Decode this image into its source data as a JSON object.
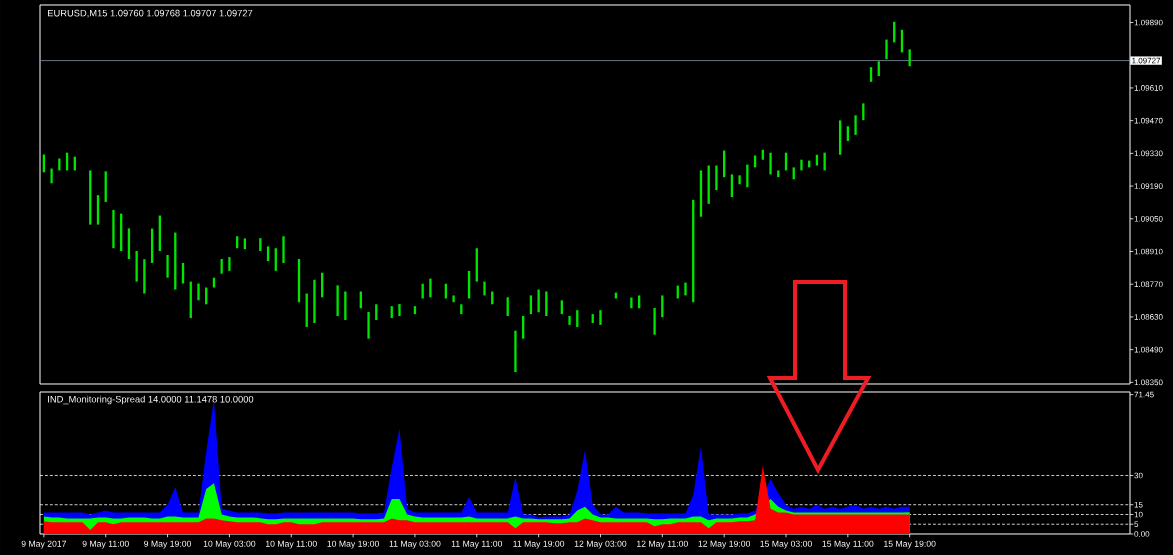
{
  "chart_data": [
    {
      "type": "bar",
      "title": "EURUSD,M15  1.09760 1.09768 1.09707 1.09727",
      "color": "#00e600",
      "categories": [
        null,
        null,
        null,
        null,
        null,
        null,
        null,
        null,
        null,
        null,
        null,
        null,
        null,
        null,
        null,
        null,
        null,
        null,
        null,
        null,
        null,
        null,
        null,
        null,
        null,
        null,
        null,
        null,
        null,
        null,
        null,
        null,
        null,
        null,
        null,
        null,
        null,
        null,
        null,
        null,
        null,
        null,
        null,
        null,
        null,
        null,
        null,
        null,
        null,
        null,
        null,
        null,
        null,
        null,
        null,
        null,
        null,
        null,
        null,
        null,
        null,
        null,
        null,
        null,
        null,
        null,
        null,
        null,
        null,
        null,
        null,
        null,
        null,
        null,
        null,
        null,
        null,
        null,
        null,
        null,
        null,
        null,
        null,
        null,
        null,
        null,
        null,
        null,
        null,
        null,
        null,
        null,
        null,
        null,
        null,
        null,
        null,
        null,
        null,
        null,
        null,
        null,
        null,
        null,
        null,
        null,
        null,
        null,
        null,
        null,
        null,
        null,
        null,
        null,
        null,
        null,
        null,
        null,
        null,
        null,
        null,
        null,
        null,
        null,
        null,
        null,
        null,
        null,
        null,
        null,
        null,
        null,
        null,
        null,
        null,
        null,
        null,
        null,
        null,
        null,
        null
      ],
      "base": [
        1.09249,
        1.09202,
        1.09257,
        1.09257,
        1.09257,
        null,
        1.09025,
        1.09025,
        1.09122,
        1.08924,
        1.08912,
        1.08878,
        1.08781,
        1.0873,
        1.08861,
        1.08912,
        1.08798,
        1.08747,
        1.08773,
        1.08625,
        1.08701,
        1.08684,
        1.08756,
        1.08815,
        1.08827,
        1.08924,
        1.0892,
        null,
        1.08912,
        1.08869,
        1.08827,
        1.08861,
        null,
        1.08693,
        1.08587,
        1.08604,
        1.08714,
        null,
        1.08634,
        1.08617,
        null,
        1.08667,
        1.08537,
        1.08617,
        null,
        1.08625,
        1.08634,
        null,
        1.08642,
        1.08709,
        1.08714,
        null,
        1.08709,
        1.08693,
        1.08642,
        1.08709,
        1.08781,
        1.08722,
        1.08684,
        null,
        1.08634,
        1.08394,
        1.08537,
        1.08642,
        1.0865,
        1.08634,
        null,
        1.08642,
        1.08596,
        1.08587,
        null,
        1.08604,
        1.08596,
        null,
        1.08709,
        null,
        1.08667,
        1.08667,
        null,
        1.08554,
        1.08629,
        null,
        1.08709,
        1.08722,
        1.08693,
        1.09059,
        1.09114,
        1.09173,
        1.09228,
        1.09143,
        1.09198,
        1.09185,
        1.0927,
        1.09303,
        1.0924,
        1.09228,
        1.09257,
        1.09219,
        1.09257,
        1.0927,
        1.09278,
        1.09257,
        null,
        1.09324,
        1.09383,
        1.09409,
        1.09472,
        1.09636,
        1.09661,
        1.09733,
        1.09805,
        1.09762,
        1.09703,
        null,
        null,
        null,
        null,
        null,
        null,
        null,
        null,
        null,
        null,
        null,
        null,
        null,
        null,
        null,
        null,
        null,
        null,
        null,
        null,
        null,
        null,
        null,
        null,
        null,
        null,
        null,
        null
      ],
      "values": [
        0.00076,
        0.00063,
        0.00051,
        0.00076,
        0.00059,
        null,
        0.00232,
        0.00126,
        0.00131,
        0.00164,
        0.0016,
        0.00131,
        0.00131,
        0.00147,
        0.00147,
        0.00152,
        0.00097,
        0.00244,
        0.00088,
        0.00156,
        0.00072,
        0.00072,
        0.00042,
        0.00063,
        0.00059,
        0.00051,
        0.00046,
        null,
        0.00055,
        0.00063,
        0.00097,
        0.00114,
        null,
        0.00185,
        0.00143,
        0.00185,
        0.00105,
        null,
        0.00131,
        0.00122,
        null,
        0.00072,
        0.00114,
        0.00067,
        null,
        0.00051,
        0.00051,
        null,
        0.00034,
        0.00063,
        0.0008,
        null,
        0.00063,
        0.00029,
        0.00042,
        0.00118,
        0.00143,
        0.00059,
        0.00055,
        null,
        0.0008,
        0.00177,
        0.00097,
        0.0008,
        0.00097,
        0.00105,
        null,
        0.00059,
        0.00038,
        0.00072,
        null,
        0.00038,
        0.00063,
        null,
        0.00025,
        null,
        0.00046,
        0.00055,
        null,
        0.00114,
        0.00093,
        null,
        0.00055,
        0.00055,
        0.00438,
        0.00198,
        0.00164,
        0.00105,
        0.00114,
        0.00097,
        0.00038,
        0.00097,
        0.00051,
        0.00042,
        0.00093,
        0.00029,
        0.00076,
        0.00051,
        0.00046,
        0.00029,
        0.00046,
        0.00076,
        null,
        0.00147,
        0.00063,
        0.00084,
        0.00072,
        0.00063,
        0.00063,
        0.00084,
        0.00088,
        0.00097,
        0.00072,
        null,
        null,
        null,
        null,
        null,
        null,
        null,
        null,
        null,
        null,
        null,
        null,
        null,
        null,
        null,
        null,
        null,
        null,
        null,
        null,
        null,
        null,
        null,
        null,
        null,
        null,
        null,
        null
      ],
      "ylim": [
        1.08343,
        1.09965
      ],
      "yticks": [
        {
          "value": 1.0835,
          "label": "1.08350"
        },
        {
          "value": 1.0849,
          "label": "1.08490"
        },
        {
          "value": 1.0863,
          "label": "1.08630"
        },
        {
          "value": 1.0877,
          "label": "1.08770"
        },
        {
          "value": 1.0891,
          "label": "1.08910"
        },
        {
          "value": 1.0905,
          "label": "1.09050"
        },
        {
          "value": 1.0919,
          "label": "1.09190"
        },
        {
          "value": 1.0933,
          "label": "1.09330"
        },
        {
          "value": 1.0947,
          "label": "1.09470"
        },
        {
          "value": 1.0961,
          "label": "1.09610"
        },
        {
          "value": 1.0989,
          "label": "1.09890"
        }
      ],
      "ref_lines": [
        {
          "axis": "y",
          "value": 1.09727,
          "label": "1.09727",
          "color": "#8495a6",
          "line_style": "solid"
        }
      ]
    },
    {
      "type": "area",
      "title": "IND_Monitoring-Spread 14.0000 11.1478 10.0000",
      "categories": [
        "9 May 2017",
        null,
        null,
        null,
        null,
        null,
        null,
        null,
        "9 May 11:00",
        null,
        null,
        null,
        null,
        null,
        null,
        null,
        "9 May 19:00",
        null,
        null,
        null,
        null,
        null,
        null,
        null,
        "10 May 03:00",
        null,
        null,
        null,
        null,
        null,
        null,
        null,
        "10 May 11:00",
        null,
        null,
        null,
        null,
        null,
        null,
        null,
        "10 May 19:00",
        null,
        null,
        null,
        null,
        null,
        null,
        null,
        "11 May 03:00",
        null,
        null,
        null,
        null,
        null,
        null,
        null,
        "11 May 11:00",
        null,
        null,
        null,
        null,
        null,
        null,
        null,
        "11 May 19:00",
        null,
        null,
        null,
        null,
        null,
        null,
        null,
        "12 May 03:00",
        null,
        null,
        null,
        null,
        null,
        null,
        null,
        "12 May 11:00",
        null,
        null,
        null,
        null,
        null,
        null,
        null,
        "12 May 19:00",
        null,
        null,
        null,
        null,
        null,
        null,
        null,
        "15 May 03:00",
        null,
        null,
        null,
        null,
        null,
        null,
        null,
        "15 May 11:00",
        null,
        null,
        null,
        null,
        null,
        null,
        null,
        "15 May 19:00",
        null,
        null,
        null,
        null,
        null,
        null,
        null,
        null,
        null,
        null,
        null,
        null,
        null,
        null,
        null,
        null,
        null,
        null,
        null,
        null,
        null,
        null,
        null,
        null,
        null,
        null,
        null,
        null
      ],
      "series": [
        {
          "color": "#0000ff",
          "values": [
            11,
            11,
            11,
            11,
            11,
            11,
            10,
            11,
            12,
            11,
            11,
            11,
            11,
            11,
            11,
            11,
            15,
            24,
            11,
            11,
            11,
            42,
            69,
            13,
            12,
            11,
            11,
            11,
            11,
            10.5,
            10.5,
            11,
            11,
            11,
            11,
            11,
            11,
            11,
            11,
            11,
            11,
            10.5,
            10.5,
            10.5,
            11,
            34,
            54,
            13,
            11,
            11,
            11,
            11,
            11,
            11,
            11,
            19,
            11,
            11,
            11,
            11,
            11,
            29,
            10,
            10,
            8.5,
            9,
            9,
            9,
            10,
            22,
            43,
            15,
            10,
            10,
            14,
            11,
            11,
            11,
            10.5,
            10.5,
            10.5,
            10.5,
            10.5,
            10.5,
            20,
            45,
            10,
            10,
            10,
            10,
            10.5,
            10.5,
            12,
            null,
            28,
            21,
            15,
            13,
            14,
            13,
            15,
            13,
            14,
            13,
            14,
            15,
            13,
            14,
            13,
            14,
            13,
            14,
            14,
            null,
            null,
            null,
            null,
            null,
            null,
            null,
            null,
            null,
            null,
            null,
            null,
            null,
            null,
            null,
            null,
            null,
            null,
            null,
            null,
            null,
            null,
            null,
            null,
            null,
            null,
            null,
            null
          ]
        },
        {
          "color": "#00ff00",
          "values": [
            9,
            8.5,
            8.5,
            8,
            8,
            8,
            8,
            8.5,
            8.5,
            8,
            8,
            8.5,
            8.5,
            8.5,
            8,
            8,
            9,
            9,
            8.5,
            8.5,
            8.5,
            23,
            26,
            10,
            9,
            8.5,
            8.5,
            8.5,
            8,
            7.5,
            7.5,
            8,
            8,
            8,
            8,
            8,
            8,
            8,
            8,
            8,
            8,
            7.5,
            7.5,
            7.5,
            8,
            18,
            18,
            10,
            9,
            8.5,
            8.5,
            8.5,
            8.5,
            8.5,
            8.5,
            9,
            8,
            8,
            8,
            8,
            8,
            9,
            8,
            8,
            7.5,
            7.5,
            7.5,
            7.5,
            8,
            12,
            14,
            10,
            8.5,
            8.5,
            8,
            8,
            8,
            8,
            8,
            7.5,
            7.5,
            8,
            8,
            8,
            9,
            9,
            7,
            8,
            8,
            8,
            8.5,
            8.5,
            10,
            null,
            18,
            14,
            12,
            11,
            11,
            11,
            11,
            11,
            11,
            11,
            11,
            11,
            11,
            11,
            11,
            11,
            11,
            11,
            11.1,
            null,
            null,
            null,
            null,
            null,
            null,
            null,
            null,
            null,
            null,
            null,
            null,
            null,
            null,
            null,
            null,
            null,
            null,
            null,
            null,
            null,
            null,
            null,
            null,
            null,
            null,
            null,
            null
          ]
        },
        {
          "color": "#ff0000",
          "values": [
            6.5,
            6,
            6,
            6,
            6,
            6,
            2,
            6,
            6,
            5,
            6,
            6,
            6,
            6,
            6,
            6,
            6,
            6,
            6,
            6,
            6,
            8,
            8,
            7,
            6.5,
            6,
            6,
            6,
            6,
            5,
            5,
            6,
            6,
            5,
            5,
            5,
            6,
            6,
            6,
            6,
            6,
            6,
            6,
            6,
            6,
            8,
            7,
            7,
            6,
            6,
            6,
            6,
            6,
            6,
            6,
            6,
            6,
            6,
            6,
            6,
            6,
            3,
            6,
            6,
            6,
            6,
            5.5,
            5.5,
            6,
            6,
            8,
            7,
            6,
            6,
            6,
            6,
            6,
            6,
            6,
            4,
            5,
            5,
            6,
            6,
            6,
            6,
            3,
            6,
            6,
            6,
            6.5,
            6.5,
            7,
            35,
            13,
            11,
            11,
            10,
            10,
            10,
            10,
            10,
            10,
            10,
            10,
            10,
            10,
            10,
            10,
            10,
            10,
            10,
            10,
            null,
            null,
            null,
            null,
            null,
            null,
            null,
            null,
            null,
            null,
            null,
            null,
            null,
            null,
            null,
            null,
            null,
            null,
            null,
            null,
            null,
            null,
            null,
            null,
            null,
            null,
            null,
            null
          ]
        }
      ],
      "ylim": [
        0,
        72.8
      ],
      "yticks": [
        {
          "value": 0,
          "label": "0.00"
        },
        5,
        10,
        15,
        30,
        71.45
      ],
      "ref_lines": [
        {
          "axis": "y",
          "value": 30,
          "color": "#ffffff",
          "line_style": "dashed"
        },
        {
          "axis": "y",
          "value": 15,
          "color": "#ffffff",
          "line_style": "dashed"
        },
        {
          "axis": "y",
          "value": 10,
          "color": "#ffffff",
          "line_style": "dashed"
        },
        {
          "axis": "y",
          "value": 5,
          "color": "#ffffff",
          "line_style": "dashed"
        }
      ]
    }
  ]
}
